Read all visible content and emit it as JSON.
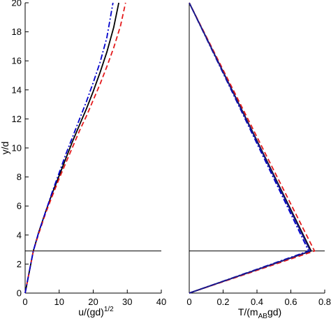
{
  "chart_data": [
    {
      "type": "line",
      "xlabel": "u/(gd)",
      "xlabel_superscript": "1/2",
      "ylabel": "y/d",
      "xlim": [
        0,
        40
      ],
      "ylim": [
        0,
        20
      ],
      "xticks": [
        0,
        10,
        20,
        30,
        40
      ],
      "yticks": [
        0,
        2,
        4,
        6,
        8,
        10,
        12,
        14,
        16,
        18,
        20
      ],
      "grid": false,
      "reference_line_y": 2.9,
      "series": [
        {
          "style": "solid",
          "color": "#000000",
          "x": [
            0,
            2.4,
            4,
            6,
            8,
            10,
            12,
            14,
            16,
            18,
            20,
            22,
            24,
            26,
            27.5
          ],
          "y": [
            0,
            2.9,
            4.2,
            5.6,
            6.9,
            8.1,
            9.3,
            10.5,
            11.6,
            12.7,
            13.9,
            15.2,
            16.6,
            18.3,
            20
          ]
        },
        {
          "style": "dashed",
          "color": "#e41a1c",
          "x": [
            0,
            2.4,
            4,
            6,
            8,
            10,
            12,
            14,
            16,
            18,
            20,
            22,
            24,
            26,
            28,
            29.5
          ],
          "y": [
            0,
            2.9,
            4.1,
            5.5,
            6.7,
            7.9,
            9.0,
            10.1,
            11.2,
            12.2,
            13.3,
            14.4,
            15.6,
            16.9,
            18.4,
            20
          ]
        },
        {
          "style": "dashdot",
          "color": "#0000cc",
          "x": [
            0,
            2.4,
            4,
            6,
            8,
            10,
            12,
            14,
            16,
            18,
            20,
            22,
            24,
            25.8
          ],
          "y": [
            0,
            2.9,
            4.2,
            5.6,
            7.0,
            8.3,
            9.6,
            10.8,
            12.0,
            13.2,
            14.5,
            15.9,
            17.6,
            20
          ]
        }
      ]
    },
    {
      "type": "line",
      "xlabel": "T/(m",
      "xlabel_subscript": "AB",
      "xlabel_suffix": "gd)",
      "ylabel": "",
      "xlim": [
        0,
        0.8
      ],
      "ylim": [
        0,
        20
      ],
      "xticks": [
        0,
        0.2,
        0.4,
        0.6,
        0.8
      ],
      "yticks": [],
      "grid": false,
      "reference_line_y": 2.9,
      "series": [
        {
          "style": "solid",
          "color": "#000000",
          "x": [
            0,
            0.72,
            0
          ],
          "y": [
            0,
            2.9,
            20
          ]
        },
        {
          "style": "dashed",
          "color": "#e41a1c",
          "x": [
            0,
            0.74,
            0
          ],
          "y": [
            0,
            2.9,
            20
          ]
        },
        {
          "style": "dashdot",
          "color": "#0000cc",
          "x": [
            0,
            0.705,
            0
          ],
          "y": [
            0,
            2.9,
            20
          ]
        },
        {
          "style": "solid",
          "color": "#1a1a8c",
          "x": [
            0,
            0.715,
            0
          ],
          "y": [
            0,
            2.9,
            20
          ]
        }
      ]
    }
  ]
}
